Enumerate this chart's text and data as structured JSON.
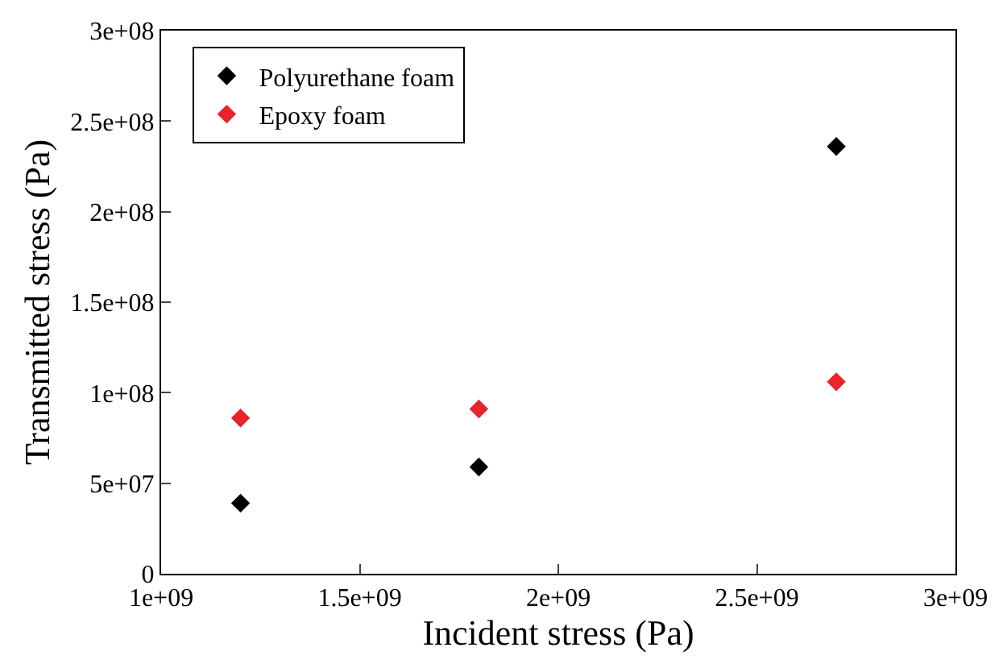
{
  "chart_data": {
    "type": "scatter",
    "xlabel": "Incident stress (Pa)",
    "ylabel": "Transmitted stress (Pa)",
    "x": [
      1200000000.0,
      1800000000.0,
      2700000000.0
    ],
    "series": [
      {
        "name": "Polyurethane foam",
        "color": "#000000",
        "values": [
          39000000.0,
          59000000.0,
          236000000.0
        ]
      },
      {
        "name": "Epoxy foam",
        "color": "#e8232a",
        "values": [
          86000000.0,
          91000000.0,
          106000000.0
        ]
      }
    ],
    "xlim": [
      1000000000.0,
      3000000000.0
    ],
    "xticks": [
      {
        "value": 1000000000.0,
        "label": "1e+09"
      },
      {
        "value": 1500000000.0,
        "label": "1.5e+09"
      },
      {
        "value": 2000000000.0,
        "label": "2e+09"
      },
      {
        "value": 2500000000.0,
        "label": "2.5e+09"
      },
      {
        "value": 3000000000.0,
        "label": "3e+09"
      }
    ],
    "ylim": [
      0,
      300000000.0
    ],
    "yticks": [
      0,
      {
        "value": 50000000.0,
        "label": "5e+07"
      },
      {
        "value": 100000000.0,
        "label": "1e+08"
      },
      {
        "value": 150000000.0,
        "label": "1.5e+08"
      },
      {
        "value": 200000000.0,
        "label": "2e+08"
      },
      {
        "value": 250000000.0,
        "label": "2.5e+08"
      },
      {
        "value": 300000000.0,
        "label": "3e+08"
      }
    ],
    "legend": "top left",
    "marker": "diamond"
  }
}
